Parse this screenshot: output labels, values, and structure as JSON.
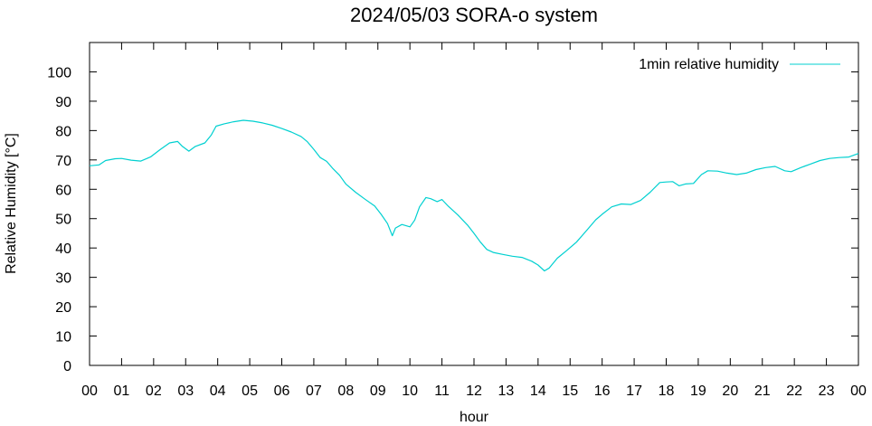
{
  "chart_data": {
    "type": "line",
    "title": "2024/05/03 SORA-o system",
    "xlabel": "hour",
    "ylabel": "Relative Humidity [°C]",
    "xlim": [
      0,
      24
    ],
    "ylim": [
      0,
      110
    ],
    "x_ticks": [
      {
        "value": 0,
        "label": "00"
      },
      {
        "value": 1,
        "label": "01"
      },
      {
        "value": 2,
        "label": "02"
      },
      {
        "value": 3,
        "label": "03"
      },
      {
        "value": 4,
        "label": "04"
      },
      {
        "value": 5,
        "label": "05"
      },
      {
        "value": 6,
        "label": "06"
      },
      {
        "value": 7,
        "label": "07"
      },
      {
        "value": 8,
        "label": "08"
      },
      {
        "value": 9,
        "label": "09"
      },
      {
        "value": 10,
        "label": "10"
      },
      {
        "value": 11,
        "label": "11"
      },
      {
        "value": 12,
        "label": "12"
      },
      {
        "value": 13,
        "label": "13"
      },
      {
        "value": 14,
        "label": "14"
      },
      {
        "value": 15,
        "label": "15"
      },
      {
        "value": 16,
        "label": "16"
      },
      {
        "value": 17,
        "label": "17"
      },
      {
        "value": 18,
        "label": "18"
      },
      {
        "value": 19,
        "label": "19"
      },
      {
        "value": 20,
        "label": "20"
      },
      {
        "value": 21,
        "label": "21"
      },
      {
        "value": 22,
        "label": "22"
      },
      {
        "value": 23,
        "label": "23"
      },
      {
        "value": 24,
        "label": "00"
      }
    ],
    "y_ticks": [
      0,
      10,
      20,
      30,
      40,
      50,
      60,
      70,
      80,
      90,
      100
    ],
    "grid": false,
    "legend_position": "top-right",
    "series": [
      {
        "name": "1min relative humidity",
        "color": "#00d0d0",
        "points": [
          [
            0.0,
            68.0
          ],
          [
            0.3,
            68.3
          ],
          [
            0.5,
            69.8
          ],
          [
            0.8,
            70.4
          ],
          [
            1.0,
            70.5
          ],
          [
            1.3,
            69.9
          ],
          [
            1.6,
            69.6
          ],
          [
            1.9,
            71.0
          ],
          [
            2.2,
            73.5
          ],
          [
            2.5,
            75.8
          ],
          [
            2.75,
            76.3
          ],
          [
            2.9,
            74.6
          ],
          [
            3.1,
            73.0
          ],
          [
            3.3,
            74.6
          ],
          [
            3.6,
            75.8
          ],
          [
            3.8,
            78.5
          ],
          [
            3.95,
            81.5
          ],
          [
            4.2,
            82.3
          ],
          [
            4.5,
            83.0
          ],
          [
            4.8,
            83.5
          ],
          [
            5.1,
            83.2
          ],
          [
            5.4,
            82.6
          ],
          [
            5.7,
            81.8
          ],
          [
            6.0,
            80.7
          ],
          [
            6.3,
            79.5
          ],
          [
            6.6,
            78.0
          ],
          [
            6.8,
            76.2
          ],
          [
            7.0,
            73.6
          ],
          [
            7.2,
            70.8
          ],
          [
            7.4,
            69.5
          ],
          [
            7.6,
            67.0
          ],
          [
            7.8,
            64.8
          ],
          [
            8.0,
            61.8
          ],
          [
            8.3,
            59.0
          ],
          [
            8.6,
            56.6
          ],
          [
            8.9,
            54.3
          ],
          [
            9.1,
            51.5
          ],
          [
            9.3,
            48.3
          ],
          [
            9.45,
            44.2
          ],
          [
            9.55,
            46.8
          ],
          [
            9.75,
            48.0
          ],
          [
            10.0,
            47.2
          ],
          [
            10.15,
            49.5
          ],
          [
            10.3,
            54.0
          ],
          [
            10.5,
            57.2
          ],
          [
            10.65,
            56.8
          ],
          [
            10.85,
            55.8
          ],
          [
            11.0,
            56.5
          ],
          [
            11.2,
            54.2
          ],
          [
            11.5,
            51.2
          ],
          [
            11.8,
            47.8
          ],
          [
            12.0,
            45.0
          ],
          [
            12.2,
            42.0
          ],
          [
            12.4,
            39.5
          ],
          [
            12.6,
            38.5
          ],
          [
            12.9,
            37.8
          ],
          [
            13.2,
            37.2
          ],
          [
            13.5,
            36.8
          ],
          [
            13.8,
            35.5
          ],
          [
            14.0,
            34.2
          ],
          [
            14.2,
            32.2
          ],
          [
            14.35,
            33.2
          ],
          [
            14.6,
            36.5
          ],
          [
            14.9,
            39.2
          ],
          [
            15.2,
            42.0
          ],
          [
            15.5,
            45.8
          ],
          [
            15.8,
            49.6
          ],
          [
            16.0,
            51.5
          ],
          [
            16.3,
            54.0
          ],
          [
            16.6,
            55.0
          ],
          [
            16.9,
            54.8
          ],
          [
            17.2,
            56.2
          ],
          [
            17.5,
            59.0
          ],
          [
            17.8,
            62.3
          ],
          [
            18.0,
            62.5
          ],
          [
            18.2,
            62.6
          ],
          [
            18.4,
            61.2
          ],
          [
            18.6,
            61.8
          ],
          [
            18.85,
            62.0
          ],
          [
            19.1,
            65.0
          ],
          [
            19.3,
            66.3
          ],
          [
            19.6,
            66.2
          ],
          [
            19.9,
            65.5
          ],
          [
            20.2,
            65.0
          ],
          [
            20.5,
            65.5
          ],
          [
            20.8,
            66.7
          ],
          [
            21.1,
            67.4
          ],
          [
            21.4,
            67.8
          ],
          [
            21.7,
            66.3
          ],
          [
            21.9,
            66.0
          ],
          [
            22.2,
            67.4
          ],
          [
            22.5,
            68.6
          ],
          [
            22.8,
            69.8
          ],
          [
            23.1,
            70.5
          ],
          [
            23.4,
            70.8
          ],
          [
            23.7,
            71.0
          ],
          [
            24.0,
            72.2
          ]
        ]
      }
    ]
  }
}
